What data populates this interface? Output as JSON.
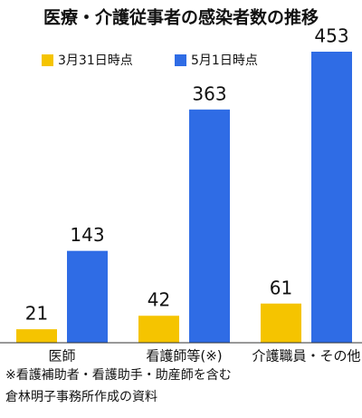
{
  "chart_data": {
    "type": "bar",
    "title": "医療・介護従事者の感染者数の推移",
    "categories": [
      "医師",
      "看護師等(※)",
      "介護職員・その他"
    ],
    "series": [
      {
        "name": "3月31日時点",
        "color": "#f5c400",
        "values": [
          21,
          42,
          61
        ]
      },
      {
        "name": "5月1日時点",
        "color": "#2f6ce5",
        "values": [
          143,
          363,
          453
        ]
      }
    ],
    "notes": [
      "※看護補助者・看護助手・助産師を含む",
      "倉林明子事務所作成の資料"
    ]
  }
}
